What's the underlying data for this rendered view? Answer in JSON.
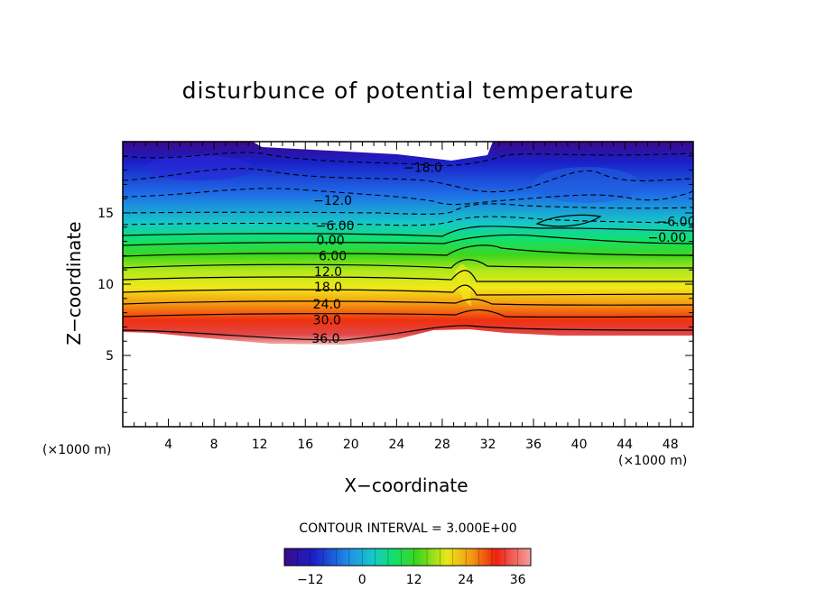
{
  "chart_data": {
    "type": "contour",
    "title": "disturbunce of potential temperature",
    "xlabel": "X−coordinate",
    "ylabel": "Z−coordinate",
    "x_unit_left": "(×1000 m)",
    "x_unit_right": "(×1000 m)",
    "contour_interval_text": "CONTOUR INTERVAL = 3.000E+00",
    "xlim": [
      0,
      50
    ],
    "ylim": [
      0,
      20
    ],
    "x_ticks": [
      4,
      8,
      12,
      16,
      20,
      24,
      28,
      32,
      36,
      40,
      44,
      48
    ],
    "y_ticks": [
      5,
      10,
      15
    ],
    "contour_interval": 3.0,
    "contour_labels": [
      {
        "text": "−18.0",
        "x": 26.3,
        "z": 18.2
      },
      {
        "text": "−12.0",
        "x": 18.4,
        "z": 15.9
      },
      {
        "text": "−6.00",
        "x": 18.6,
        "z": 14.1
      },
      {
        "text": "0.00",
        "x": 18.2,
        "z": 13.1
      },
      {
        "text": "6.00",
        "x": 18.4,
        "z": 12.0
      },
      {
        "text": "12.0",
        "x": 18.0,
        "z": 10.9
      },
      {
        "text": "18.0",
        "x": 18.0,
        "z": 9.8
      },
      {
        "text": "24.0",
        "x": 17.9,
        "z": 8.6
      },
      {
        "text": "30.0",
        "x": 17.9,
        "z": 7.5
      },
      {
        "text": "36.0",
        "x": 17.8,
        "z": 6.2
      },
      {
        "text": "−6.00",
        "x": 48.5,
        "z": 14.4
      },
      {
        "text": "−0.00",
        "x": 47.7,
        "z": 13.3
      }
    ],
    "colorbar": {
      "min": -18,
      "max": 39,
      "ticks": [
        -12,
        0,
        12,
        24,
        36
      ],
      "tick_labels": [
        "−12",
        "0",
        "12",
        "24",
        "36"
      ]
    }
  }
}
